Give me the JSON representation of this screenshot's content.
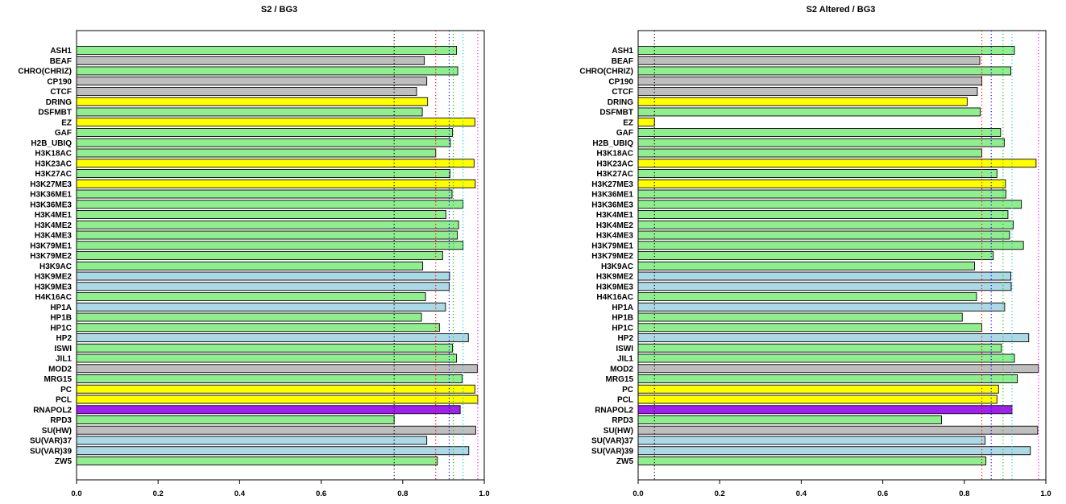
{
  "colors": {
    "green": "#90ee90",
    "gray": "#bebebe",
    "yellow": "#ffff00",
    "lightblue": "#add8e6",
    "purple": "#a020f0",
    "ref_black": "#000000",
    "ref_red": "#ff0000",
    "ref_blue": "#0000ff",
    "ref_green": "#00cd00",
    "ref_cyan": "#00ced1",
    "ref_magenta": "#ff00ff"
  },
  "chart_data": [
    {
      "type": "bar",
      "orientation": "horizontal",
      "title": "S2 / BG3",
      "xlim": [
        0,
        1
      ],
      "xticks": [
        "0.0",
        "0.2",
        "0.4",
        "0.6",
        "0.8",
        "1.0"
      ],
      "grid": false,
      "categories": [
        "ASH1",
        "BEAF",
        "CHRO(CHRIZ)",
        "CP190",
        "CTCF",
        "DRING",
        "DSFMBT",
        "EZ",
        "GAF",
        "H2B_UBIQ",
        "H3K18AC",
        "H3K23AC",
        "H3K27AC",
        "H3K27ME3",
        "H3K36ME1",
        "H3K36ME3",
        "H3K4ME1",
        "H3K4ME2",
        "H3K4ME3",
        "H3K79ME1",
        "H3K79ME2",
        "H3K9AC",
        "H3K9ME2",
        "H3K9ME3",
        "H4K16AC",
        "HP1A",
        "HP1B",
        "HP1C",
        "HP2",
        "ISWI",
        "JIL1",
        "MOD2",
        "MRG15",
        "PC",
        "PCL",
        "RNAPOL2",
        "RPD3",
        "SU(HW)",
        "SU(VAR)37",
        "SU(VAR)39",
        "ZW5"
      ],
      "values": [
        0.932,
        0.853,
        0.935,
        0.859,
        0.834,
        0.861,
        0.848,
        0.977,
        0.922,
        0.917,
        0.881,
        0.975,
        0.916,
        0.978,
        0.921,
        0.948,
        0.906,
        0.937,
        0.934,
        0.948,
        0.898,
        0.849,
        0.915,
        0.914,
        0.856,
        0.905,
        0.846,
        0.89,
        0.961,
        0.922,
        0.932,
        0.983,
        0.946,
        0.977,
        0.984,
        0.941,
        0.779,
        0.979,
        0.859,
        0.962,
        0.885
      ],
      "bar_colors": [
        "green",
        "gray",
        "green",
        "gray",
        "gray",
        "yellow",
        "green",
        "yellow",
        "green",
        "green",
        "green",
        "yellow",
        "green",
        "yellow",
        "green",
        "green",
        "green",
        "green",
        "green",
        "green",
        "green",
        "green",
        "lightblue",
        "lightblue",
        "green",
        "lightblue",
        "green",
        "green",
        "lightblue",
        "green",
        "green",
        "gray",
        "green",
        "yellow",
        "yellow",
        "purple",
        "green",
        "gray",
        "lightblue",
        "lightblue",
        "green"
      ],
      "reference_lines": [
        {
          "value": 0.779,
          "color": "ref_black"
        },
        {
          "value": 0.881,
          "color": "ref_red"
        },
        {
          "value": 0.914,
          "color": "ref_blue"
        },
        {
          "value": 0.924,
          "color": "ref_green"
        },
        {
          "value": 0.948,
          "color": "ref_cyan"
        },
        {
          "value": 0.984,
          "color": "ref_magenta"
        }
      ]
    },
    {
      "type": "bar",
      "orientation": "horizontal",
      "title": "S2 Altered / BG3",
      "xlim": [
        0,
        1
      ],
      "xticks": [
        "0.0",
        "0.2",
        "0.4",
        "0.6",
        "0.8",
        "1.0"
      ],
      "grid": false,
      "categories": [
        "ASH1",
        "BEAF",
        "CHRO(CHRIZ)",
        "CP190",
        "CTCF",
        "DRING",
        "DSFMBT",
        "EZ",
        "GAF",
        "H2B_UBIQ",
        "H3K18AC",
        "H3K23AC",
        "H3K27AC",
        "H3K27ME3",
        "H3K36ME1",
        "H3K36ME3",
        "H3K4ME1",
        "H3K4ME2",
        "H3K4ME3",
        "H3K79ME1",
        "H3K79ME2",
        "H3K9AC",
        "H3K9ME2",
        "H3K9ME3",
        "H4K16AC",
        "HP1A",
        "HP1B",
        "HP1C",
        "HP2",
        "ISWI",
        "JIL1",
        "MOD2",
        "MRG15",
        "PC",
        "PCL",
        "RNAPOL2",
        "RPD3",
        "SU(HW)",
        "SU(VAR)37",
        "SU(VAR)39",
        "ZW5"
      ],
      "values": [
        0.923,
        0.838,
        0.914,
        0.843,
        0.832,
        0.807,
        0.839,
        0.04,
        0.889,
        0.898,
        0.843,
        0.976,
        0.88,
        0.901,
        0.902,
        0.94,
        0.907,
        0.92,
        0.911,
        0.945,
        0.871,
        0.825,
        0.914,
        0.915,
        0.83,
        0.899,
        0.795,
        0.843,
        0.958,
        0.891,
        0.923,
        0.982,
        0.93,
        0.884,
        0.88,
        0.917,
        0.744,
        0.98,
        0.851,
        0.962,
        0.853
      ],
      "bar_colors": [
        "green",
        "gray",
        "green",
        "gray",
        "gray",
        "yellow",
        "green",
        "yellow",
        "green",
        "green",
        "green",
        "yellow",
        "green",
        "yellow",
        "green",
        "green",
        "green",
        "green",
        "green",
        "green",
        "green",
        "green",
        "lightblue",
        "lightblue",
        "green",
        "lightblue",
        "green",
        "green",
        "lightblue",
        "green",
        "green",
        "gray",
        "green",
        "yellow",
        "yellow",
        "purple",
        "green",
        "gray",
        "lightblue",
        "lightblue",
        "green"
      ],
      "reference_lines": [
        {
          "value": 0.04,
          "color": "ref_black"
        },
        {
          "value": 0.843,
          "color": "ref_red"
        },
        {
          "value": 0.866,
          "color": "ref_blue"
        },
        {
          "value": 0.895,
          "color": "ref_green"
        },
        {
          "value": 0.917,
          "color": "ref_cyan"
        },
        {
          "value": 0.982,
          "color": "ref_magenta"
        }
      ]
    }
  ]
}
